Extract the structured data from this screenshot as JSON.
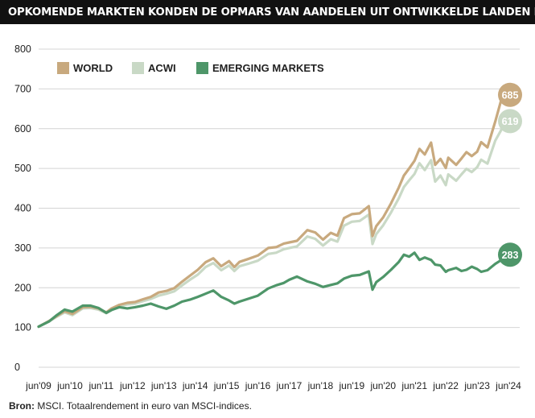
{
  "header": {
    "title": "OPKOMENDE MARKTEN KONDEN DE OPMARS VAN AANDELEN UIT ONTWIKKELDE LANDEN NIET BIJBENEN"
  },
  "footer": {
    "source_label": "Bron:",
    "source_text": "MSCI. Totaalrendement in euro van MSCI-indices."
  },
  "chart_data": {
    "type": "line",
    "title": "OPKOMENDE MARKTEN KONDEN DE OPMARS VAN AANDELEN UIT ONTWIKKELDE LANDEN NIET BIJBENEN",
    "xlabel": "",
    "ylabel": "",
    "ylim": [
      0,
      800
    ],
    "yticks": [
      0,
      100,
      200,
      300,
      400,
      500,
      600,
      700,
      800
    ],
    "xlim": [
      2009.42,
      2024.42
    ],
    "xticks": [
      {
        "x": 2009.42,
        "label": "jun'09"
      },
      {
        "x": 2010.42,
        "label": "jun'10"
      },
      {
        "x": 2011.42,
        "label": "jun'11"
      },
      {
        "x": 2012.42,
        "label": "jun'12"
      },
      {
        "x": 2013.42,
        "label": "jun'13"
      },
      {
        "x": 2014.42,
        "label": "jun'14"
      },
      {
        "x": 2015.42,
        "label": "jun'15"
      },
      {
        "x": 2016.42,
        "label": "jun'16"
      },
      {
        "x": 2017.42,
        "label": "jun'17"
      },
      {
        "x": 2018.42,
        "label": "jun'18"
      },
      {
        "x": 2019.42,
        "label": "jun'19"
      },
      {
        "x": 2020.42,
        "label": "jun'20"
      },
      {
        "x": 2021.42,
        "label": "jun'21"
      },
      {
        "x": 2022.42,
        "label": "jun'22"
      },
      {
        "x": 2023.42,
        "label": "jun'23"
      },
      {
        "x": 2024.42,
        "label": "jun'24"
      }
    ],
    "grid": true,
    "legend": "top-left",
    "series": [
      {
        "name": "WORLD",
        "color": "#c8a97e",
        "end_label": "685",
        "x": [
          2009.42,
          2009.75,
          2010.0,
          2010.25,
          2010.5,
          2010.83,
          2011.08,
          2011.33,
          2011.58,
          2011.75,
          2012.0,
          2012.25,
          2012.5,
          2012.75,
          2013.0,
          2013.25,
          2013.5,
          2013.75,
          2014.0,
          2014.25,
          2014.5,
          2014.75,
          2015.0,
          2015.25,
          2015.5,
          2015.67,
          2015.83,
          2016.1,
          2016.42,
          2016.75,
          2017.0,
          2017.25,
          2017.42,
          2017.67,
          2018.0,
          2018.25,
          2018.5,
          2018.75,
          2018.96,
          2019.17,
          2019.42,
          2019.67,
          2019.96,
          2020.08,
          2020.2,
          2020.42,
          2020.67,
          2020.92,
          2021.08,
          2021.25,
          2021.42,
          2021.58,
          2021.75,
          2021.95,
          2022.08,
          2022.25,
          2022.42,
          2022.5,
          2022.75,
          2022.92,
          2023.08,
          2023.25,
          2023.42,
          2023.55,
          2023.75,
          2024.0,
          2024.2,
          2024.42
        ],
        "y": [
          102,
          116,
          129,
          141,
          134,
          151,
          152,
          148,
          138,
          148,
          157,
          162,
          164,
          171,
          177,
          188,
          192,
          199,
          215,
          230,
          245,
          264,
          274,
          254,
          267,
          252,
          265,
          272,
          281,
          300,
          302,
          311,
          314,
          318,
          345,
          339,
          321,
          338,
          331,
          375,
          385,
          387,
          405,
          330,
          355,
          377,
          412,
          452,
          482,
          500,
          519,
          549,
          535,
          565,
          509,
          524,
          501,
          527,
          509,
          525,
          541,
          531,
          542,
          566,
          553,
          618,
          675,
          685
        ]
      },
      {
        "name": "ACWI",
        "color": "#c9d9c6",
        "end_label": "619",
        "x": [
          2009.42,
          2009.75,
          2010.0,
          2010.25,
          2010.5,
          2010.83,
          2011.08,
          2011.33,
          2011.58,
          2011.75,
          2012.0,
          2012.25,
          2012.5,
          2012.75,
          2013.0,
          2013.25,
          2013.5,
          2013.75,
          2014.0,
          2014.25,
          2014.5,
          2014.75,
          2015.0,
          2015.25,
          2015.5,
          2015.67,
          2015.83,
          2016.1,
          2016.42,
          2016.75,
          2017.0,
          2017.25,
          2017.42,
          2017.67,
          2018.0,
          2018.25,
          2018.5,
          2018.75,
          2018.96,
          2019.17,
          2019.42,
          2019.67,
          2019.96,
          2020.08,
          2020.2,
          2020.42,
          2020.67,
          2020.92,
          2021.08,
          2021.25,
          2021.42,
          2021.58,
          2021.75,
          2021.95,
          2022.08,
          2022.25,
          2022.42,
          2022.5,
          2022.75,
          2022.92,
          2023.08,
          2023.25,
          2023.42,
          2023.55,
          2023.75,
          2024.0,
          2024.2,
          2024.42
        ],
        "y": [
          102,
          115,
          127,
          138,
          131,
          148,
          149,
          145,
          136,
          145,
          154,
          158,
          160,
          166,
          172,
          180,
          185,
          191,
          206,
          220,
          233,
          252,
          262,
          244,
          256,
          242,
          254,
          260,
          268,
          285,
          288,
          297,
          300,
          304,
          329,
          323,
          306,
          322,
          316,
          356,
          366,
          368,
          384,
          310,
          335,
          357,
          389,
          425,
          453,
          470,
          486,
          513,
          496,
          521,
          467,
          482,
          458,
          485,
          469,
          485,
          499,
          491,
          503,
          522,
          512,
          570,
          598,
          619
        ]
      },
      {
        "name": "EMERGING MARKETS",
        "color": "#4e9669",
        "end_label": "283",
        "x": [
          2009.42,
          2009.75,
          2010.0,
          2010.25,
          2010.5,
          2010.83,
          2011.08,
          2011.33,
          2011.58,
          2011.75,
          2012.0,
          2012.25,
          2012.5,
          2012.75,
          2013.0,
          2013.25,
          2013.5,
          2013.75,
          2014.0,
          2014.25,
          2014.5,
          2014.75,
          2015.0,
          2015.25,
          2015.5,
          2015.67,
          2015.83,
          2016.1,
          2016.42,
          2016.75,
          2017.0,
          2017.25,
          2017.42,
          2017.67,
          2018.0,
          2018.25,
          2018.5,
          2018.75,
          2018.96,
          2019.17,
          2019.42,
          2019.67,
          2019.96,
          2020.08,
          2020.2,
          2020.42,
          2020.67,
          2020.92,
          2021.08,
          2021.25,
          2021.42,
          2021.58,
          2021.75,
          2021.95,
          2022.08,
          2022.25,
          2022.42,
          2022.5,
          2022.75,
          2022.92,
          2023.08,
          2023.25,
          2023.42,
          2023.55,
          2023.75,
          2024.0,
          2024.2,
          2024.42
        ],
        "y": [
          102,
          115,
          131,
          145,
          140,
          155,
          155,
          149,
          137,
          144,
          151,
          148,
          151,
          155,
          160,
          153,
          147,
          155,
          165,
          170,
          177,
          185,
          193,
          177,
          168,
          160,
          165,
          172,
          180,
          198,
          206,
          212,
          220,
          228,
          216,
          210,
          202,
          207,
          211,
          223,
          230,
          232,
          241,
          195,
          214,
          227,
          245,
          265,
          283,
          278,
          288,
          270,
          276,
          270,
          258,
          256,
          240,
          244,
          250,
          242,
          245,
          253,
          247,
          240,
          244,
          260,
          270,
          283
        ]
      }
    ]
  }
}
